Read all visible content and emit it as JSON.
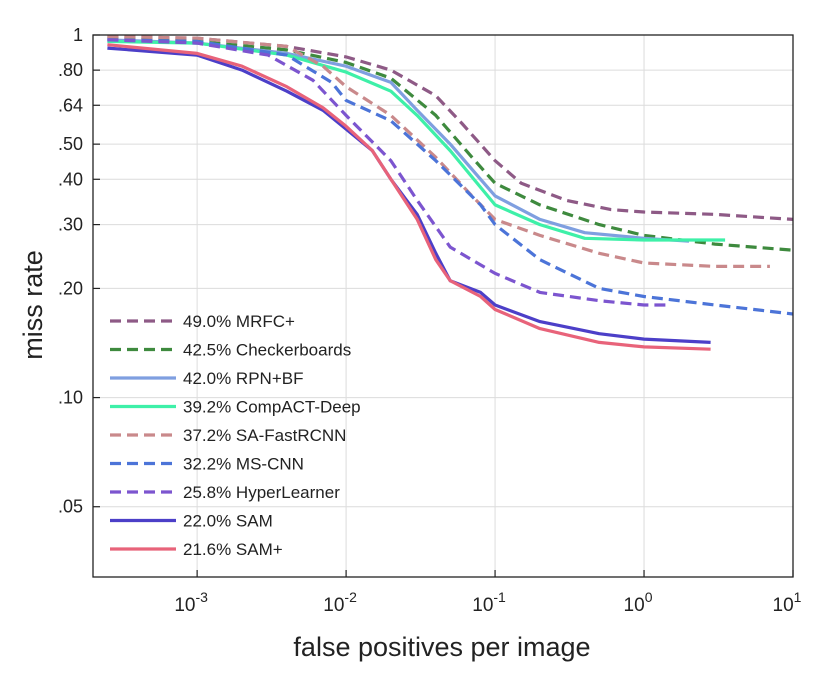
{
  "chart_data": {
    "type": "line",
    "title": "",
    "xlabel": "false positives per image",
    "ylabel": "miss rate",
    "x_scale": "log",
    "y_scale": "log",
    "xlim": [
      0.0002,
      10
    ],
    "ylim": [
      0.032,
      1
    ],
    "x_ticks": [
      {
        "value": 0.001,
        "base": "10",
        "exp": "-3"
      },
      {
        "value": 0.01,
        "base": "10",
        "exp": "-2"
      },
      {
        "value": 0.1,
        "base": "10",
        "exp": "-1"
      },
      {
        "value": 1,
        "base": "10",
        "exp": "0"
      },
      {
        "value": 10,
        "base": "10",
        "exp": "1"
      }
    ],
    "y_ticks": [
      {
        "value": 1,
        "label": "1"
      },
      {
        "value": 0.8,
        "label": ".80"
      },
      {
        "value": 0.64,
        "label": ".64"
      },
      {
        "value": 0.5,
        "label": ".50"
      },
      {
        "value": 0.4,
        "label": ".40"
      },
      {
        "value": 0.3,
        "label": ".30"
      },
      {
        "value": 0.2,
        "label": ".20"
      },
      {
        "value": 0.1,
        "label": ".10"
      },
      {
        "value": 0.05,
        "label": ".05"
      }
    ],
    "grid": true,
    "legend_position": "bottom-left",
    "series": [
      {
        "name": "49.0% MRFC+",
        "color": "#8e5a86",
        "dash": true,
        "points": [
          [
            0.00025,
            0.99
          ],
          [
            0.001,
            0.98
          ],
          [
            0.004,
            0.93
          ],
          [
            0.01,
            0.87
          ],
          [
            0.02,
            0.8
          ],
          [
            0.04,
            0.68
          ],
          [
            0.06,
            0.57
          ],
          [
            0.1,
            0.45
          ],
          [
            0.15,
            0.39
          ],
          [
            0.3,
            0.35
          ],
          [
            0.6,
            0.33
          ],
          [
            1,
            0.325
          ],
          [
            3,
            0.32
          ],
          [
            10,
            0.31
          ]
        ]
      },
      {
        "name": "42.5% Checkerboards",
        "color": "#3e8a3e",
        "dash": true,
        "points": [
          [
            0.00025,
            0.98
          ],
          [
            0.001,
            0.96
          ],
          [
            0.004,
            0.91
          ],
          [
            0.01,
            0.84
          ],
          [
            0.02,
            0.76
          ],
          [
            0.04,
            0.6
          ],
          [
            0.07,
            0.46
          ],
          [
            0.1,
            0.39
          ],
          [
            0.2,
            0.34
          ],
          [
            0.5,
            0.3
          ],
          [
            1,
            0.28
          ],
          [
            3,
            0.265
          ],
          [
            10,
            0.255
          ]
        ]
      },
      {
        "name": "42.0% RPN+BF",
        "color": "#7f9fe0",
        "dash": false,
        "points": [
          [
            0.00025,
            0.97
          ],
          [
            0.001,
            0.95
          ],
          [
            0.004,
            0.89
          ],
          [
            0.01,
            0.82
          ],
          [
            0.02,
            0.74
          ],
          [
            0.03,
            0.62
          ],
          [
            0.05,
            0.5
          ],
          [
            0.08,
            0.4
          ],
          [
            0.1,
            0.36
          ],
          [
            0.2,
            0.31
          ],
          [
            0.4,
            0.285
          ],
          [
            1,
            0.275
          ],
          [
            2,
            0.27
          ]
        ]
      },
      {
        "name": "39.2% CompACT-Deep",
        "color": "#3ef0a8",
        "dash": false,
        "points": [
          [
            0.00025,
            0.96
          ],
          [
            0.001,
            0.95
          ],
          [
            0.004,
            0.88
          ],
          [
            0.01,
            0.79
          ],
          [
            0.02,
            0.7
          ],
          [
            0.03,
            0.6
          ],
          [
            0.05,
            0.48
          ],
          [
            0.08,
            0.38
          ],
          [
            0.1,
            0.34
          ],
          [
            0.2,
            0.3
          ],
          [
            0.4,
            0.275
          ],
          [
            1,
            0.272
          ],
          [
            3.5,
            0.272
          ]
        ]
      },
      {
        "name": "37.2% SA-FastRCNN",
        "color": "#c9898b",
        "dash": true,
        "points": [
          [
            0.00025,
            0.99
          ],
          [
            0.001,
            0.98
          ],
          [
            0.004,
            0.93
          ],
          [
            0.007,
            0.82
          ],
          [
            0.01,
            0.72
          ],
          [
            0.02,
            0.6
          ],
          [
            0.04,
            0.46
          ],
          [
            0.07,
            0.36
          ],
          [
            0.1,
            0.31
          ],
          [
            0.2,
            0.28
          ],
          [
            0.5,
            0.25
          ],
          [
            1,
            0.235
          ],
          [
            3,
            0.23
          ],
          [
            7,
            0.23
          ]
        ]
      },
      {
        "name": "32.2% MS-CNN",
        "color": "#4c74d8",
        "dash": true,
        "points": [
          [
            0.00025,
            0.97
          ],
          [
            0.001,
            0.96
          ],
          [
            0.004,
            0.88
          ],
          [
            0.008,
            0.74
          ],
          [
            0.01,
            0.66
          ],
          [
            0.02,
            0.58
          ],
          [
            0.04,
            0.45
          ],
          [
            0.08,
            0.34
          ],
          [
            0.1,
            0.3
          ],
          [
            0.2,
            0.24
          ],
          [
            0.5,
            0.2
          ],
          [
            1,
            0.19
          ],
          [
            3,
            0.18
          ],
          [
            10,
            0.17
          ]
        ]
      },
      {
        "name": "25.8% HyperLearner",
        "color": "#7c55cf",
        "dash": true,
        "points": [
          [
            0.00025,
            0.97
          ],
          [
            0.001,
            0.95
          ],
          [
            0.003,
            0.88
          ],
          [
            0.006,
            0.75
          ],
          [
            0.01,
            0.6
          ],
          [
            0.02,
            0.45
          ],
          [
            0.03,
            0.35
          ],
          [
            0.05,
            0.26
          ],
          [
            0.1,
            0.22
          ],
          [
            0.2,
            0.195
          ],
          [
            0.5,
            0.185
          ],
          [
            1,
            0.18
          ],
          [
            1.5,
            0.18
          ]
        ]
      },
      {
        "name": "22.0% SAM",
        "color": "#4c3fc8",
        "dash": false,
        "points": [
          [
            0.00025,
            0.92
          ],
          [
            0.001,
            0.88
          ],
          [
            0.002,
            0.8
          ],
          [
            0.004,
            0.7
          ],
          [
            0.007,
            0.62
          ],
          [
            0.01,
            0.55
          ],
          [
            0.015,
            0.48
          ],
          [
            0.02,
            0.4
          ],
          [
            0.03,
            0.32
          ],
          [
            0.04,
            0.25
          ],
          [
            0.05,
            0.21
          ],
          [
            0.08,
            0.195
          ],
          [
            0.1,
            0.18
          ],
          [
            0.2,
            0.162
          ],
          [
            0.5,
            0.15
          ],
          [
            1,
            0.145
          ],
          [
            2.8,
            0.142
          ]
        ]
      },
      {
        "name": "21.6% SAM+",
        "color": "#e8637a",
        "dash": false,
        "points": [
          [
            0.00025,
            0.94
          ],
          [
            0.001,
            0.89
          ],
          [
            0.002,
            0.82
          ],
          [
            0.004,
            0.72
          ],
          [
            0.007,
            0.63
          ],
          [
            0.01,
            0.56
          ],
          [
            0.015,
            0.48
          ],
          [
            0.02,
            0.4
          ],
          [
            0.03,
            0.31
          ],
          [
            0.04,
            0.24
          ],
          [
            0.05,
            0.21
          ],
          [
            0.08,
            0.19
          ],
          [
            0.1,
            0.175
          ],
          [
            0.2,
            0.155
          ],
          [
            0.5,
            0.142
          ],
          [
            1,
            0.138
          ],
          [
            2.8,
            0.136
          ]
        ]
      }
    ]
  }
}
